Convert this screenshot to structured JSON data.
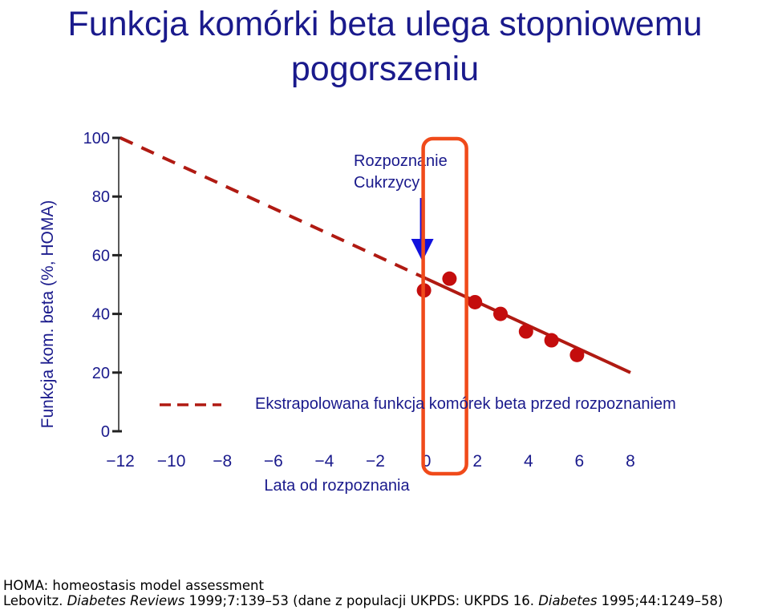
{
  "title": "Funkcja komórki beta ulega stopniowemu pogorszeniu",
  "chart_data": {
    "type": "scatter",
    "ylabel": "Funkcja kom. beta (%, HOMA)",
    "xlabel": "Lata od rozpoznania",
    "xlim": [
      -12,
      8
    ],
    "ylim": [
      0,
      100
    ],
    "x_ticks": [
      "−12",
      "−10",
      "−8",
      "−6",
      "−4",
      "−2",
      "0",
      "2",
      "4",
      "6",
      "8"
    ],
    "y_ticks": [
      "0",
      "20",
      "40",
      "60",
      "80",
      "100"
    ],
    "points": [
      {
        "x": 0,
        "y": 48
      },
      {
        "x": 1,
        "y": 52
      },
      {
        "x": 2,
        "y": 44
      },
      {
        "x": 3,
        "y": 40
      },
      {
        "x": 4,
        "y": 34
      },
      {
        "x": 5,
        "y": 31
      },
      {
        "x": 6,
        "y": 26
      }
    ],
    "extrapolated_line": {
      "x": [
        -12,
        0
      ],
      "y": [
        100,
        52
      ],
      "style": "dashed"
    },
    "fit_line": {
      "x": [
        0,
        8
      ],
      "y": [
        52,
        20
      ],
      "style": "solid"
    },
    "annotation": {
      "text_line1": "Rozpoznanie",
      "text_line2": "Cukrzycy",
      "x": 0
    },
    "legend": {
      "label": "Ekstrapolowana funkcja komórek beta przed rozpoznaniem",
      "style": "dashed"
    },
    "colors": {
      "line": "#b01a12",
      "points": "#c40d0d",
      "arrow": "#1111dd",
      "highlight": "#f04a1a",
      "axis_text": "#1a1a8c"
    }
  },
  "footer": {
    "line1": "HOMA: homeostasis model assessment",
    "line2_a": "Lebovitz. ",
    "line2_b": "Diabetes Reviews",
    "line2_c": " 1999;7:139–53 (dane z populacji UKPDS: UKPDS 16. ",
    "line2_d": "Diabetes",
    "line2_e": " 1995;44:1249–58)"
  }
}
